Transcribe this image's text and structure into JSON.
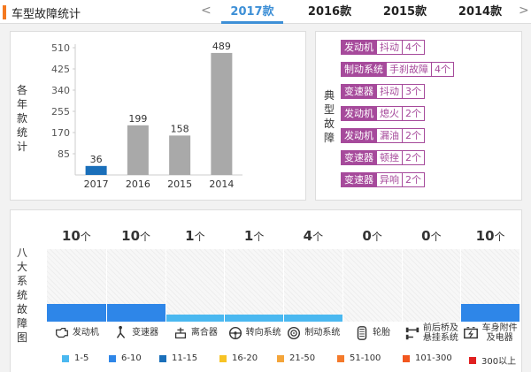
{
  "header": {
    "title": "车型故障统计",
    "prev_arrow": "<",
    "next_arrow": ">",
    "tabs": [
      "2017款",
      "2016款",
      "2015款",
      "2014款"
    ],
    "active_tab": 0
  },
  "year_chart": {
    "side_label": "各年款统计",
    "chart_data": {
      "type": "bar",
      "categories": [
        "2017",
        "2016",
        "2015",
        "2014"
      ],
      "values": [
        36,
        199,
        158,
        489
      ],
      "yticks": [
        85,
        170,
        255,
        340,
        425,
        510
      ],
      "ylim": [
        0,
        510
      ],
      "colors": [
        "#1a6fba",
        "#a9a9a9",
        "#a9a9a9",
        "#a9a9a9"
      ]
    }
  },
  "typical_faults": {
    "side_label": "典型故障",
    "items": [
      {
        "category": "发动机",
        "fault": "抖动",
        "count": "4个"
      },
      {
        "category": "制动系统",
        "fault": "手刹故障",
        "count": "4个"
      },
      {
        "category": "变速器",
        "fault": "抖动",
        "count": "3个"
      },
      {
        "category": "发动机",
        "fault": "熄火",
        "count": "2个"
      },
      {
        "category": "发动机",
        "fault": "漏油",
        "count": "2个"
      },
      {
        "category": "变速器",
        "fault": "顿挫",
        "count": "2个"
      },
      {
        "category": "变速器",
        "fault": "异响",
        "count": "2个"
      }
    ]
  },
  "systems": {
    "side_label": "八大系统故障图",
    "unit": "个",
    "items": [
      {
        "name": "发动机",
        "count": "10",
        "level": 10,
        "icon": "engine-icon"
      },
      {
        "name": "变速器",
        "count": "10",
        "level": 10,
        "icon": "gear-shift-icon"
      },
      {
        "name": "离合器",
        "count": "1",
        "level": 1,
        "icon": "clutch-icon"
      },
      {
        "name": "转向系统",
        "count": "1",
        "level": 1,
        "icon": "steering-wheel-icon"
      },
      {
        "name": "制动系统",
        "count": "4",
        "level": 4,
        "icon": "brake-disc-icon"
      },
      {
        "name": "轮胎",
        "count": "0",
        "level": 0,
        "icon": "tire-icon"
      },
      {
        "name": "前后桥及悬挂系统",
        "count": "0",
        "level": 0,
        "icon": "axle-icon"
      },
      {
        "name": "车身附件及电器",
        "count": "10",
        "level": 10,
        "icon": "battery-icon"
      }
    ],
    "level_colors": {
      "1": "#4ab8f0",
      "4": "#4ab8f0",
      "10": "#2e86e8"
    }
  },
  "legend": [
    {
      "label": "1-5",
      "color": "#4ab8f0"
    },
    {
      "label": "6-10",
      "color": "#2e86e8"
    },
    {
      "label": "11-15",
      "color": "#1a6fba"
    },
    {
      "label": "16-20",
      "color": "#f7c325"
    },
    {
      "label": "21-50",
      "color": "#f4a53a"
    },
    {
      "label": "51-100",
      "color": "#f47a2b"
    },
    {
      "label": "101-300",
      "color": "#f2571f"
    },
    {
      "label": "300以上",
      "color": "#e02020"
    }
  ]
}
